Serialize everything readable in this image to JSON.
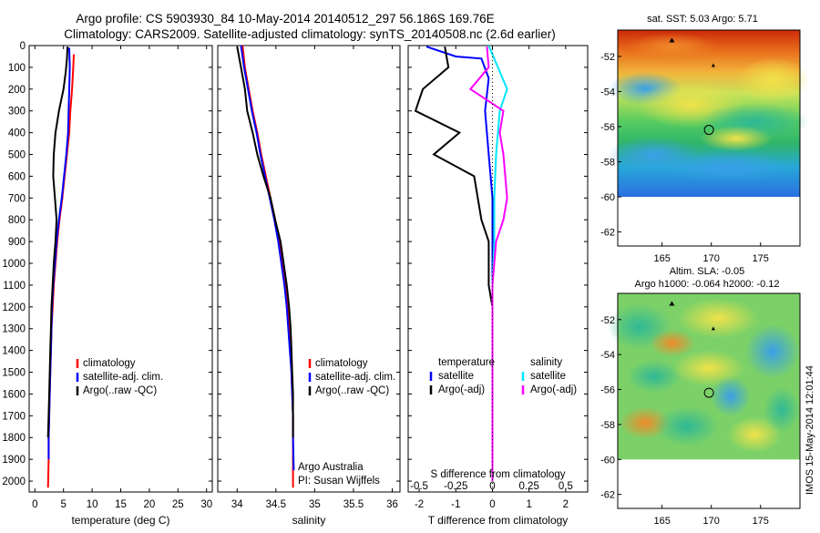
{
  "title_line1": "Argo profile: CS 5903930_84 10-May-2014 20140512_297 56.186S 169.76E",
  "title_line2": "Climatology: CARS2009. Satellite-adjusted climatology: synTS_20140508.nc (2.6d earlier)",
  "vertical_stamp": "IMOS 15-May-2014 12:01:44",
  "colors": {
    "climatology": "#ff0000",
    "satellite": "#0000ff",
    "argo": "#000000",
    "cyan": "#00e5ff",
    "magenta": "#ff00ff"
  },
  "chart_data": [
    {
      "type": "line",
      "id": "temperature",
      "xlabel": "temperature (deg C)",
      "xlim": [
        -1,
        31
      ],
      "xticks": [
        0,
        5,
        10,
        15,
        20,
        25,
        30
      ],
      "ylim": [
        2050,
        0
      ],
      "yticks": [
        0,
        100,
        200,
        300,
        400,
        500,
        600,
        700,
        800,
        900,
        1000,
        1100,
        1200,
        1300,
        1400,
        1500,
        1600,
        1700,
        1800,
        1900,
        2000
      ],
      "legend": [
        "climatology",
        "satellite-adj. clim.",
        "Argo(..raw -QC)"
      ],
      "series": [
        {
          "name": "climatology",
          "color": "#ff0000",
          "x": [
            6.8,
            6.7,
            6.5,
            6.2,
            6.0,
            5.6,
            5.2,
            4.8,
            4.3,
            3.9,
            3.6,
            3.3,
            3.1,
            2.9,
            2.8,
            2.7,
            2.6,
            2.5,
            2.4,
            2.4,
            2.3
          ],
          "y": [
            40,
            100,
            200,
            300,
            400,
            500,
            600,
            700,
            800,
            900,
            1000,
            1100,
            1200,
            1300,
            1400,
            1500,
            1600,
            1700,
            1800,
            1900,
            2030
          ]
        },
        {
          "name": "satellite-adj. clim.",
          "color": "#0000ff",
          "x": [
            6.0,
            6.1,
            6.0,
            5.9,
            5.8,
            5.5,
            5.1,
            4.7,
            4.2,
            3.8,
            3.5,
            3.2,
            3.0,
            2.9,
            2.8,
            2.7,
            2.6,
            2.5,
            2.4,
            2.4
          ],
          "y": [
            10,
            100,
            200,
            300,
            400,
            500,
            600,
            700,
            800,
            900,
            1000,
            1100,
            1200,
            1300,
            1400,
            1500,
            1600,
            1700,
            1800,
            1900
          ]
        },
        {
          "name": "Argo(..raw -QC)",
          "color": "#000000",
          "x": [
            5.7,
            5.6,
            5.4,
            5.0,
            4.2,
            3.6,
            3.3,
            3.2,
            3.5,
            3.8,
            3.6,
            3.3,
            3.1,
            2.9,
            2.8,
            2.7,
            2.6,
            2.5,
            2.4,
            2.3
          ],
          "y": [
            5,
            60,
            120,
            200,
            300,
            400,
            500,
            600,
            700,
            800,
            900,
            1000,
            1100,
            1200,
            1300,
            1400,
            1500,
            1600,
            1700,
            1800
          ]
        }
      ]
    },
    {
      "type": "line",
      "id": "salinity",
      "xlabel": "salinity",
      "xlim": [
        33.75,
        36.1
      ],
      "xticks": [
        34,
        34.5,
        35,
        35.5,
        36
      ],
      "ylim": [
        2050,
        0
      ],
      "legend": [
        "climatology",
        "satellite-adj. clim.",
        "Argo(..raw -QC)"
      ],
      "annotation": [
        "Argo Australia",
        "PI: Susan Wijffels"
      ],
      "series": [
        {
          "name": "climatology",
          "color": "#ff0000",
          "x": [
            34.07,
            34.1,
            34.15,
            34.2,
            34.26,
            34.31,
            34.37,
            34.43,
            34.49,
            34.54,
            34.58,
            34.62,
            34.65,
            34.67,
            34.69,
            34.7,
            34.71,
            34.72,
            34.72,
            34.72
          ],
          "y": [
            0,
            100,
            200,
            300,
            400,
            500,
            600,
            700,
            800,
            900,
            1000,
            1100,
            1200,
            1300,
            1400,
            1500,
            1600,
            1700,
            1800,
            2030
          ]
        },
        {
          "name": "satellite-adj. clim.",
          "color": "#0000ff",
          "x": [
            34.05,
            34.09,
            34.14,
            34.19,
            34.25,
            34.3,
            34.36,
            34.42,
            34.48,
            34.53,
            34.57,
            34.61,
            34.64,
            34.66,
            34.68,
            34.7,
            34.71,
            34.72,
            34.72,
            34.73
          ],
          "y": [
            0,
            100,
            200,
            300,
            400,
            500,
            600,
            700,
            800,
            900,
            1000,
            1100,
            1200,
            1300,
            1400,
            1500,
            1600,
            1700,
            1800,
            1950
          ]
        },
        {
          "name": "Argo(..raw -QC)",
          "color": "#000000",
          "x": [
            34.0,
            34.05,
            34.1,
            34.13,
            34.2,
            34.26,
            34.34,
            34.43,
            34.49,
            34.56,
            34.6,
            34.64,
            34.67,
            34.69,
            34.7,
            34.71,
            34.72,
            34.72
          ],
          "y": [
            5,
            100,
            200,
            300,
            400,
            500,
            600,
            700,
            800,
            900,
            1000,
            1100,
            1200,
            1300,
            1400,
            1500,
            1600,
            1800
          ]
        }
      ]
    },
    {
      "type": "line",
      "id": "differences",
      "xlabel": "T difference from climatology",
      "xlabel2": "S difference from climatology",
      "xlim": [
        -2.3,
        2.6
      ],
      "xticks": [
        -2,
        -1,
        0,
        1,
        2
      ],
      "xticks_labels2": [
        "-0.5",
        "-0.25",
        "0",
        "0.25",
        "0.5"
      ],
      "ylim": [
        2050,
        0
      ],
      "legend_left": {
        "title": "temperature",
        "entries": [
          "satellite",
          "Argo(-adj)"
        ]
      },
      "legend_right": {
        "title": "salinity",
        "entries": [
          "satellite",
          "Argo(-adj)"
        ]
      },
      "series": [
        {
          "name": "temperature satellite",
          "color": "#0000ff",
          "x": [
            -1.8,
            -1.0,
            -0.3,
            -0.1,
            -0.2,
            -0.1,
            0.0,
            0.0,
            0.0,
            0.0,
            0.0,
            0.0,
            0.0,
            0.0
          ],
          "y": [
            5,
            50,
            60,
            150,
            300,
            500,
            700,
            900,
            1100,
            1300,
            1500,
            1700,
            1900,
            2000
          ]
        },
        {
          "name": "temperature Argo(-adj)",
          "color": "#000000",
          "x": [
            -1.3,
            -1.2,
            -1.9,
            -2.1,
            -0.9,
            -1.6,
            -0.5,
            -0.3,
            -0.1,
            -0.1,
            -0.1,
            0.0,
            0.0,
            0.0,
            0.0
          ],
          "y": [
            5,
            100,
            200,
            300,
            400,
            500,
            600,
            800,
            900,
            1000,
            1100,
            1200,
            1400,
            1700,
            2000
          ]
        },
        {
          "name": "salinity satellite",
          "color": "#00e5ff",
          "x": [
            -0.1,
            0.15,
            0.4,
            0.2,
            0.1,
            0.05,
            0.05,
            0.0,
            0.0,
            0.0,
            0.0,
            0.0
          ],
          "y": [
            0,
            100,
            200,
            300,
            500,
            700,
            900,
            1100,
            1300,
            1500,
            1700,
            2000
          ]
        },
        {
          "name": "salinity Argo(-adj)",
          "color": "#ff00ff",
          "x": [
            -0.15,
            -0.1,
            -0.6,
            0.3,
            0.2,
            0.3,
            0.4,
            0.3,
            0.1,
            0.05,
            0.0,
            0.0,
            0.0,
            0.0
          ],
          "y": [
            5,
            100,
            200,
            300,
            400,
            500,
            700,
            800,
            900,
            1000,
            1100,
            1300,
            1600,
            2000
          ]
        }
      ]
    },
    {
      "type": "heatmap",
      "id": "sst_map",
      "title": "sat. SST: 5.03 Argo: 5.71",
      "xticks": [
        165,
        170,
        175
      ],
      "yticks": [
        -52,
        -54,
        -56,
        -58,
        -60,
        -62
      ],
      "xlim": [
        160.5,
        179
      ],
      "ylim": [
        -62.8,
        -50.5
      ],
      "marker": {
        "lon": 169.76,
        "lat": -56.186
      }
    },
    {
      "type": "heatmap",
      "id": "sla_map",
      "title": "Altim. SLA: -0.05",
      "subtitle": "Argo h1000: -0.064 h2000: -0.12",
      "xticks": [
        165,
        170,
        175
      ],
      "yticks": [
        -52,
        -54,
        -56,
        -58,
        -60,
        -62
      ],
      "xlim": [
        160.5,
        179
      ],
      "ylim": [
        -62.8,
        -50.5
      ],
      "marker": {
        "lon": 169.76,
        "lat": -56.186
      }
    }
  ]
}
